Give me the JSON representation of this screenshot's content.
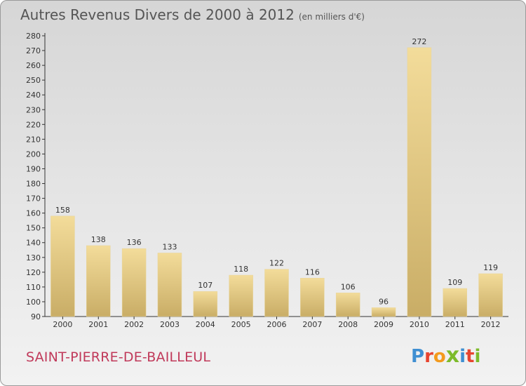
{
  "header": {
    "title": "Autres Revenus Divers de 2000 à 2012",
    "subtitle": "(en milliers d'€)"
  },
  "footer": {
    "commune": "SAINT-PIERRE-DE-BAILLEUL",
    "logo": "Proxiti"
  },
  "colors": {
    "bar_light": "#f3dc9a",
    "bar_dark": "#c9ad66",
    "axis": "#333333",
    "title": "#555555",
    "commune": "#c0395a"
  },
  "chart_data": {
    "type": "bar",
    "title": "Autres Revenus Divers de 2000 à 2012",
    "subtitle": "(en milliers d'€)",
    "xlabel": "",
    "ylabel": "",
    "categories": [
      "2000",
      "2001",
      "2002",
      "2003",
      "2004",
      "2005",
      "2006",
      "2007",
      "2008",
      "2009",
      "2010",
      "2011",
      "2012"
    ],
    "values": [
      158,
      138,
      136,
      133,
      107,
      118,
      122,
      116,
      106,
      96,
      272,
      109,
      119
    ],
    "ylim": [
      90,
      280
    ],
    "yticks": [
      90,
      100,
      110,
      120,
      130,
      140,
      150,
      160,
      170,
      180,
      190,
      200,
      210,
      220,
      230,
      240,
      250,
      260,
      270,
      280
    ],
    "grid": false,
    "data_labels": true
  }
}
